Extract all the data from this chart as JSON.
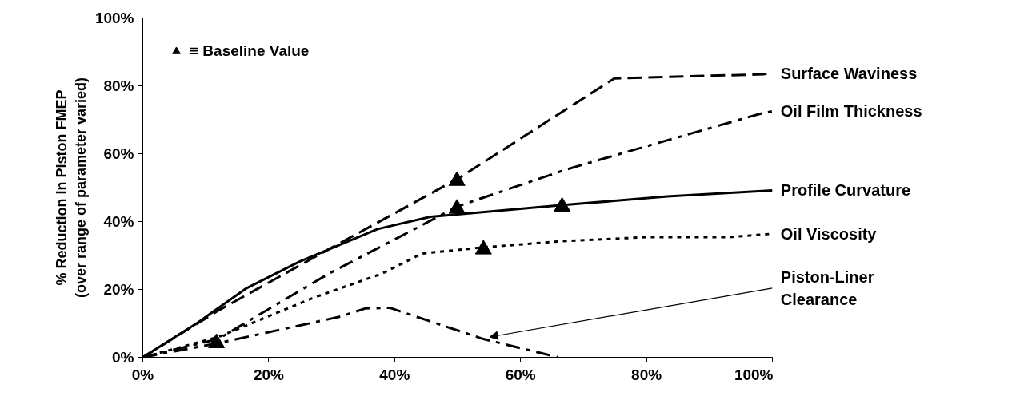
{
  "chart_data": {
    "type": "line",
    "ylabel": "% Reduction in Piston FMEP\n(over range of parameter varied)",
    "xlim": [
      0,
      100
    ],
    "ylim": [
      0,
      100
    ],
    "xticks": [
      {
        "value": 0,
        "label": "0%"
      },
      {
        "value": 20,
        "label": "20%"
      },
      {
        "value": 40,
        "label": "40%"
      },
      {
        "value": 60,
        "label": "60%"
      },
      {
        "value": 80,
        "label": "80%"
      },
      {
        "value": 100,
        "label": "100%"
      }
    ],
    "yticks": [
      {
        "value": 0,
        "label": "0%"
      },
      {
        "value": 20,
        "label": "20%"
      },
      {
        "value": 40,
        "label": "40%"
      },
      {
        "value": 60,
        "label": "60%"
      },
      {
        "value": 80,
        "label": "80%"
      },
      {
        "value": 100,
        "label": "100%"
      }
    ],
    "grid": false,
    "legend": "top left",
    "series": [
      {
        "name": "Surface Waviness",
        "color": "#000000",
        "line_style": "dashed",
        "x": [
          0,
          12,
          29.5,
          50.2,
          74.9,
          98.5,
          100
        ],
        "values": [
          0,
          13.8,
          31.8,
          52.8,
          82.2,
          83.4,
          83.7
        ]
      },
      {
        "name": "Oil Film Thickness",
        "color": "#000000",
        "line_style": "dashdot",
        "x": [
          0,
          12,
          18.5,
          29.5,
          44.4,
          49.9,
          67,
          76.8,
          98.5,
          100
        ],
        "values": [
          0,
          5.4,
          12.6,
          24.6,
          39,
          44.4,
          55.2,
          60.5,
          72,
          72.5
        ]
      },
      {
        "name": "Profile Curvature",
        "color": "#000000",
        "line_style": "solid",
        "x": [
          0,
          8.7,
          16.5,
          24.9,
          37.3,
          45.7,
          66.4,
          83.3,
          100
        ],
        "values": [
          0,
          10.2,
          20.4,
          28.2,
          37.8,
          41.4,
          44.8,
          47.4,
          49.2
        ]
      },
      {
        "name": "Oil Viscosity",
        "color": "#000000",
        "line_style": "dotted",
        "x": [
          0,
          12,
          26.9,
          37.9,
          44.4,
          54.1,
          66.4,
          80,
          93,
          100
        ],
        "values": [
          0,
          6,
          17.4,
          24.6,
          30.6,
          32.4,
          34.2,
          35.4,
          35.4,
          36.4
        ]
      },
      {
        "color": "#000000",
        "line_style": "dashdot",
        "x": [
          0,
          12,
          31.4,
          35.3,
          39.2,
          54.1,
          66
        ],
        "values": [
          0,
          4.2,
          12,
          14.4,
          14.6,
          5.4,
          0
        ]
      },
      {
        "name": "≡ Baseline Value",
        "type": "scatter",
        "marker": "triangle",
        "color": "#000000",
        "x": [
          11.7,
          49.9,
          49.9,
          54.1,
          66.6
        ],
        "values": [
          4.2,
          52,
          43.8,
          31.8,
          44.4
        ]
      }
    ],
    "annotations": [
      {
        "text": "Piston-Liner\nClearance",
        "x": 54.1,
        "y": 5.4
      }
    ]
  }
}
